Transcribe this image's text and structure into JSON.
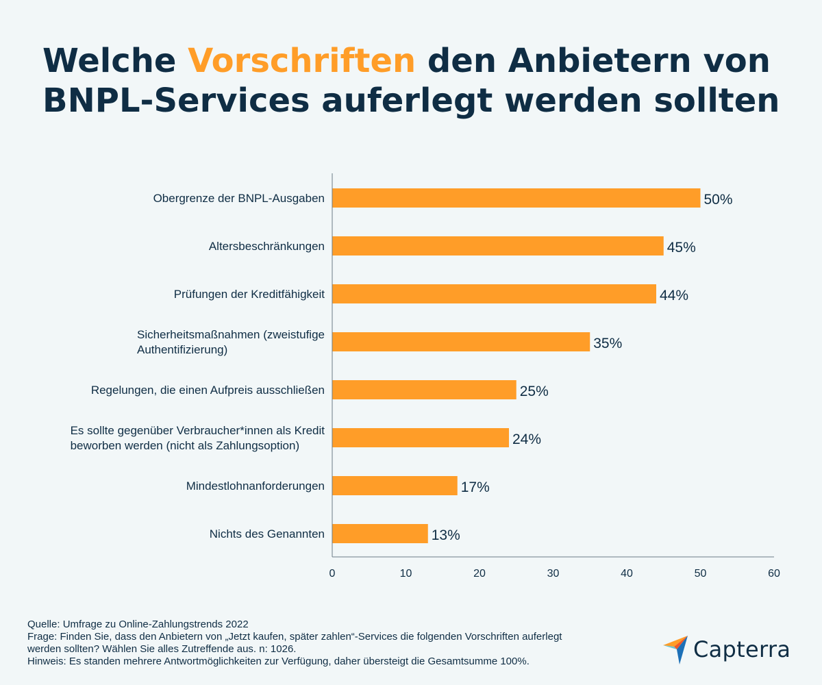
{
  "title": {
    "part1": "Welche ",
    "highlight": "Vorschriften",
    "part2": " den Anbietern von BNPL-Services auferlegt werden sollten"
  },
  "colors": {
    "background": "#f2f7f8",
    "bar": "#ff9d28",
    "text": "#0f2d44",
    "highlight": "#ff9d28"
  },
  "chart_data": {
    "type": "bar",
    "orientation": "horizontal",
    "categories": [
      [
        "Obergrenze der BNPL-Ausgaben"
      ],
      [
        "Altersbeschränkungen"
      ],
      [
        "Prüfungen der Kreditfähigkeit"
      ],
      [
        "Sicherheitsmaßnahmen (zweistufige",
        "Authentifizierung)"
      ],
      [
        "Regelungen, die einen Aufpreis ausschließen"
      ],
      [
        "Es sollte gegenüber Verbraucher*innen als Kredit",
        "beworben werden (nicht als Zahlungsoption)"
      ],
      [
        "Mindestlohnanforderungen"
      ],
      [
        "Nichts des Genannten"
      ]
    ],
    "values": [
      50,
      45,
      44,
      35,
      25,
      24,
      17,
      13
    ],
    "value_labels": [
      "50%",
      "45%",
      "44%",
      "35%",
      "25%",
      "24%",
      "17%",
      "13%"
    ],
    "xlim": [
      0,
      60
    ],
    "xticks": [
      "0",
      "10",
      "20",
      "30",
      "40",
      "50",
      "60"
    ],
    "grid": false,
    "legend": "none"
  },
  "footer": {
    "source": "Quelle: Umfrage zu Online-Zahlungstrends 2022",
    "question": "Frage: Finden Sie, dass den Anbietern von „Jetzt kaufen, später zahlen“-Services die folgenden Vorschriften auferlegt\nwerden sollten? Wählen Sie alles Zutreffende aus. n: 1026.",
    "note": "Hinweis: Es standen mehrere Antwortmöglichkeiten zur Verfügung, daher übersteigt die Gesamtsumme 100%."
  },
  "logo": {
    "text": "Capterra",
    "icon": "capterra-logo-icon"
  }
}
